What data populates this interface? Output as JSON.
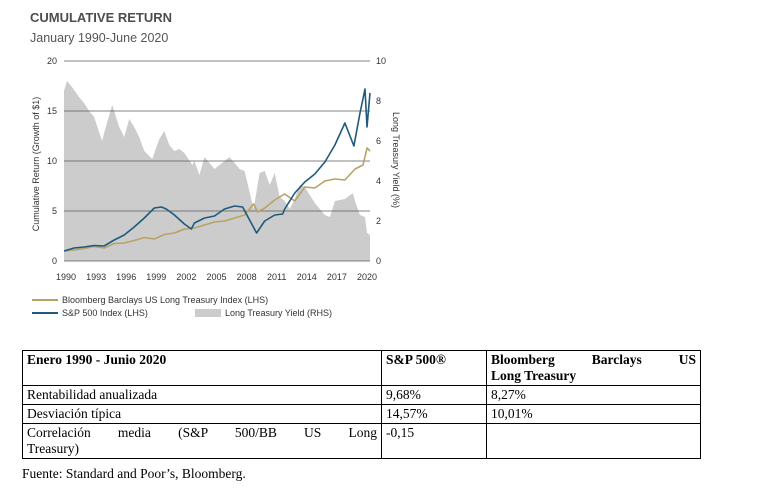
{
  "chart_data": {
    "type": "line",
    "title": "CUMULATIVE RETURN",
    "subtitle": "January 1990-June 2020",
    "ylabel": "Cumulative Return (Growth of $1)",
    "y2label": "Long Treasury Yield (%)",
    "ylim": [
      0,
      20
    ],
    "y2lim": [
      0,
      10
    ],
    "yticks": [
      "0",
      "5",
      "10",
      "15",
      "20"
    ],
    "y2ticks": [
      "0",
      "2",
      "4",
      "6",
      "8",
      "10"
    ],
    "xlim": [
      1990,
      2020.5
    ],
    "xticks": [
      "1990",
      "1993",
      "1996",
      "1999",
      "2002",
      "2005",
      "2008",
      "2011",
      "2014",
      "2017",
      "2020"
    ],
    "grid": "horizontal",
    "legend_position": "bottom-left",
    "series": [
      {
        "name": "Bloomberg Barclays US Long Treasury Index (LHS)",
        "type": "line",
        "axis": "left",
        "color": "#b8a264",
        "x": [
          1990,
          1991,
          1992,
          1993,
          1994,
          1995,
          1996,
          1997,
          1998,
          1999,
          2000,
          2001,
          2002,
          2003,
          2004,
          2005,
          2006,
          2007,
          2008,
          2008.9,
          2009.3,
          2010,
          2011,
          2012,
          2013,
          2014,
          2015,
          2016,
          2017,
          2018,
          2019,
          2019.8,
          2020.2,
          2020.5
        ],
        "values": [
          1.0,
          1.1,
          1.25,
          1.45,
          1.3,
          1.75,
          1.8,
          2.05,
          2.35,
          2.2,
          2.65,
          2.8,
          3.2,
          3.3,
          3.6,
          3.9,
          4.0,
          4.3,
          4.6,
          5.7,
          4.9,
          5.3,
          6.1,
          6.7,
          6.0,
          7.4,
          7.3,
          8.0,
          8.2,
          8.1,
          9.2,
          9.6,
          11.3,
          11.0
        ]
      },
      {
        "name": "S&P 500 Index (LHS)",
        "type": "line",
        "axis": "left",
        "color": "#1f5a7d",
        "x": [
          1990,
          1991,
          1992,
          1993,
          1994,
          1995,
          1996,
          1997,
          1998,
          1999,
          1999.7,
          2000.2,
          2001,
          2002,
          2002.7,
          2003,
          2004,
          2005,
          2006,
          2007,
          2007.8,
          2008.5,
          2009.2,
          2010,
          2011,
          2011.8,
          2012,
          2013,
          2014,
          2015,
          2016,
          2017,
          2018,
          2018.9,
          2019.5,
          2020,
          2020.2,
          2020.5
        ],
        "values": [
          1.0,
          1.3,
          1.4,
          1.55,
          1.5,
          2.1,
          2.6,
          3.4,
          4.3,
          5.3,
          5.4,
          5.2,
          4.6,
          3.7,
          3.2,
          3.8,
          4.3,
          4.5,
          5.2,
          5.5,
          5.4,
          4.1,
          2.8,
          4.0,
          4.6,
          4.7,
          5.2,
          6.8,
          7.9,
          8.7,
          9.9,
          11.6,
          13.8,
          11.5,
          14.8,
          17.2,
          13.4,
          16.8
        ]
      },
      {
        "name": "Long Treasury Yield (RHS)",
        "type": "area",
        "axis": "right",
        "color": "#cccccc",
        "x": [
          1990,
          1990.3,
          1990.8,
          1991.5,
          1992,
          1992.5,
          1993,
          1993.8,
          1994,
          1994.8,
          1995.5,
          1996,
          1996.5,
          1997,
          1997.5,
          1998,
          1998.8,
          1999,
          1999.5,
          2000,
          2000.5,
          2001,
          2001.5,
          2002,
          2002.8,
          2003,
          2003.5,
          2004,
          2005,
          2006,
          2006.5,
          2007,
          2007.5,
          2008,
          2008.9,
          2009.2,
          2009.5,
          2010,
          2010.5,
          2011,
          2011.5,
          2012,
          2012.5,
          2013,
          2013.5,
          2014,
          2015,
          2016,
          2016.5,
          2017,
          2018,
          2018.8,
          2019,
          2019.5,
          2020,
          2020.2,
          2020.5
        ],
        "values": [
          8.5,
          9.0,
          8.7,
          8.2,
          7.9,
          7.5,
          7.2,
          6.0,
          6.4,
          7.8,
          6.7,
          6.2,
          7.1,
          6.7,
          6.2,
          5.5,
          5.1,
          5.4,
          6.1,
          6.5,
          5.8,
          5.5,
          5.6,
          5.4,
          4.8,
          5.0,
          4.3,
          5.2,
          4.6,
          5.0,
          5.2,
          4.9,
          4.6,
          4.5,
          2.6,
          3.5,
          4.4,
          4.5,
          3.8,
          4.4,
          3.2,
          3.0,
          2.6,
          3.1,
          3.8,
          3.7,
          2.9,
          2.3,
          2.2,
          3.0,
          3.1,
          3.4,
          3.0,
          2.3,
          2.2,
          1.4,
          1.3
        ]
      }
    ]
  },
  "table": {
    "header": [
      "Enero 1990 - Junio 2020",
      "S&P 500®",
      "Bloomberg Barclays US Long Treasury"
    ],
    "header_bb_line1": "Bloomberg   Barclays   US",
    "header_bb_line2": "Long Treasury",
    "rows": [
      {
        "label": "Rentabilidad anualizada",
        "sp": "9,68%",
        "bb": "8,27%"
      },
      {
        "label": "Desviación típica",
        "sp": "14,57%",
        "bb": "10,01%"
      },
      {
        "label": "Correlación media (S&P 500/BB US Long Treasury)",
        "label_line1": "Correlación   media   (S&P   500/BB   US   Long",
        "label_line2": "Treasury)",
        "sp": "-0,15",
        "bb": ""
      }
    ]
  },
  "source": "Fuente: Standard and Poor’s, Bloomberg."
}
